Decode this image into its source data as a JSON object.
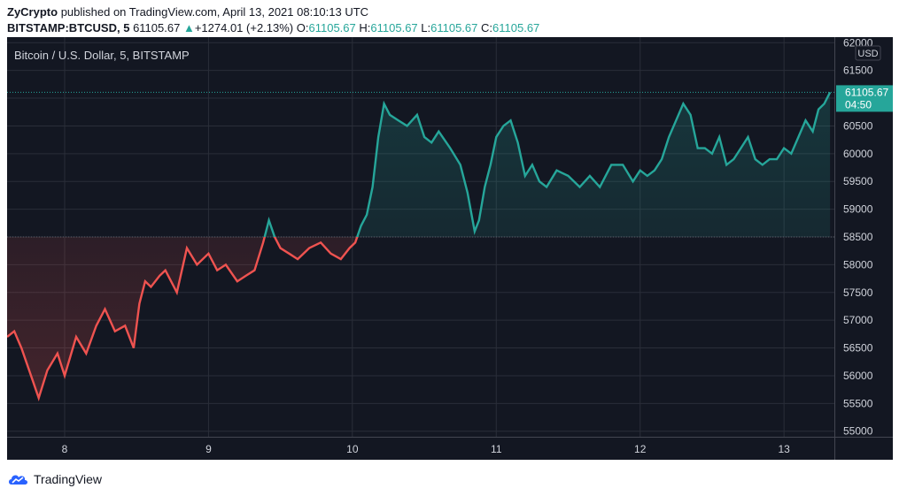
{
  "header": {
    "author": "ZyCrypto",
    "published_text": "published on TradingView.com, April 13, 2021 08:10:13 UTC",
    "symbol": "BITSTAMP:BTCUSD, 5",
    "last": "61105.67",
    "change": "+1274.01 (+2.13%)",
    "o_label": "O:",
    "o_value": "61105.67",
    "h_label": "H:",
    "h_value": "61105.67",
    "l_label": "L:",
    "l_value": "61105.67",
    "c_label": "C:",
    "c_value": "61105.67"
  },
  "footer": {
    "brand": "TradingView"
  },
  "colors": {
    "up": "#26a69a",
    "down": "#ef5350",
    "bg": "#131722",
    "grid": "#2a2e39",
    "axis_text": "#d1d4dc"
  },
  "chart_data": {
    "type": "line",
    "title": "Bitcoin / U.S. Dollar, 5, BITSTAMP",
    "currency": "USD",
    "baseline": 58500,
    "last_price": "61105.67",
    "countdown": "04:50",
    "ylim": [
      54900,
      62100
    ],
    "xlim": [
      7.6,
      13.35
    ],
    "y_ticks": [
      55000,
      55500,
      56000,
      56500,
      57000,
      57500,
      58000,
      58500,
      59000,
      59500,
      60000,
      60500,
      61000,
      61500,
      62000
    ],
    "x_ticks": [
      {
        "value": 8,
        "label": "8"
      },
      {
        "value": 9,
        "label": "9"
      },
      {
        "value": 10,
        "label": "10"
      },
      {
        "value": 11,
        "label": "11"
      },
      {
        "value": 12,
        "label": "12"
      },
      {
        "value": 13,
        "label": "13"
      }
    ],
    "series": [
      {
        "x": [
          7.6,
          7.65,
          7.7,
          7.78,
          7.82,
          7.88,
          7.95,
          8.0,
          8.08,
          8.15,
          8.22,
          8.28,
          8.35,
          8.42,
          8.48,
          8.52,
          8.56,
          8.6,
          8.66,
          8.7,
          8.78,
          8.85,
          8.92,
          9.0,
          9.06,
          9.12,
          9.2,
          9.26,
          9.32,
          9.38,
          9.42,
          9.46,
          9.5,
          9.56,
          9.62,
          9.7,
          9.78,
          9.85,
          9.92,
          9.98,
          10.02,
          10.06,
          10.1,
          10.14,
          10.18,
          10.22,
          10.26,
          10.32,
          10.38,
          10.45,
          10.5,
          10.55,
          10.6,
          10.68,
          10.75,
          10.8,
          10.85,
          10.88,
          10.92,
          10.96,
          11.0,
          11.05,
          11.1,
          11.15,
          11.2,
          11.25,
          11.3,
          11.35,
          11.42,
          11.5,
          11.58,
          11.65,
          11.72,
          11.8,
          11.88,
          11.95,
          12.0,
          12.05,
          12.1,
          12.15,
          12.2,
          12.25,
          12.3,
          12.35,
          12.4,
          12.45,
          12.5,
          12.55,
          12.6,
          12.65,
          12.7,
          12.75,
          12.8,
          12.85,
          12.9,
          12.95,
          13.0,
          13.05,
          13.1,
          13.15,
          13.2,
          13.24,
          13.28,
          13.32
        ],
        "y": [
          56700,
          56800,
          56500,
          55900,
          55600,
          56100,
          56400,
          56000,
          56700,
          56400,
          56900,
          57200,
          56800,
          56900,
          56500,
          57300,
          57700,
          57600,
          57800,
          57900,
          57500,
          58300,
          58000,
          58200,
          57900,
          58000,
          57700,
          57800,
          57900,
          58400,
          58800,
          58500,
          58300,
          58200,
          58100,
          58300,
          58400,
          58200,
          58100,
          58300,
          58400,
          58700,
          58900,
          59400,
          60300,
          60900,
          60700,
          60600,
          60500,
          60700,
          60300,
          60200,
          60400,
          60100,
          59800,
          59300,
          58600,
          58800,
          59400,
          59800,
          60300,
          60500,
          60600,
          60200,
          59600,
          59800,
          59500,
          59400,
          59700,
          59600,
          59400,
          59600,
          59400,
          59800,
          59800,
          59500,
          59700,
          59600,
          59700,
          59900,
          60300,
          60600,
          60900,
          60700,
          60100,
          60100,
          60000,
          60300,
          59800,
          59900,
          60100,
          60300,
          59900,
          59800,
          59900,
          59900,
          60100,
          60000,
          60300,
          60600,
          60400,
          60800,
          60900,
          61105.67
        ]
      }
    ]
  }
}
